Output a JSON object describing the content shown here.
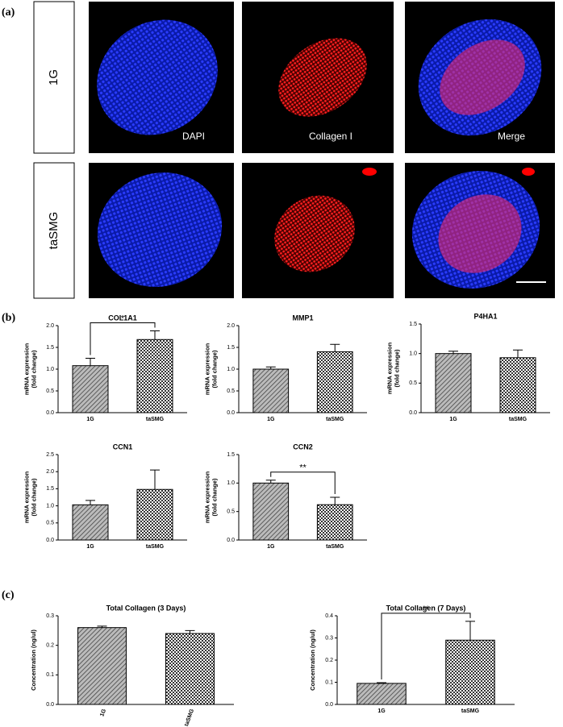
{
  "figure": {
    "panel_labels": [
      "(a)",
      "(b)",
      "(c)"
    ],
    "row_labels": [
      "1G",
      "taSMG"
    ],
    "channel_labels": [
      "DAPI",
      "Collagen I",
      "Merge"
    ]
  },
  "chart_data": [
    {
      "type": "bar",
      "title": "COL1A1",
      "y_label": [
        "mRNA expression",
        "(fold change)"
      ],
      "categories": [
        "1G",
        "taSMG"
      ],
      "values": [
        1.08,
        1.68
      ],
      "errors": [
        0.17,
        0.2
      ],
      "ylim": [
        0,
        2.0
      ],
      "yticks": [
        {
          "value": 0,
          "label": "0.0"
        },
        {
          "value": 0.5,
          "label": "0.5"
        },
        {
          "value": 1,
          "label": "1.0"
        },
        {
          "value": 1.5,
          "label": "1.5"
        },
        {
          "value": 2,
          "label": "2.0"
        }
      ],
      "significance": "*"
    },
    {
      "type": "bar",
      "title": "MMP1",
      "y_label": [
        "mRNA expression",
        "(fold change)"
      ],
      "categories": [
        "1G",
        "taSMG"
      ],
      "values": [
        1.0,
        1.4
      ],
      "errors": [
        0.05,
        0.17
      ],
      "ylim": [
        0,
        2.0
      ],
      "yticks": [
        {
          "value": 0,
          "label": "0.0"
        },
        {
          "value": 0.5,
          "label": "0.5"
        },
        {
          "value": 1,
          "label": "1.0"
        },
        {
          "value": 1.5,
          "label": "1.5"
        },
        {
          "value": 2,
          "label": "2.0"
        }
      ]
    },
    {
      "type": "bar",
      "title": "P4HA1",
      "y_label": [
        "mRNA expression",
        "(fold change)"
      ],
      "categories": [
        "1G",
        "taSMG"
      ],
      "values": [
        1.0,
        0.93
      ],
      "errors": [
        0.04,
        0.13
      ],
      "ylim": [
        0,
        1.5
      ],
      "yticks": [
        {
          "value": 0,
          "label": "0.0"
        },
        {
          "value": 0.5,
          "label": "0.5"
        },
        {
          "value": 1,
          "label": "1.0"
        },
        {
          "value": 1.5,
          "label": "1.5"
        }
      ]
    },
    {
      "type": "bar",
      "title": "CCN1",
      "y_label": [
        "mRNA expression",
        "(fold change)"
      ],
      "categories": [
        "1G",
        "taSMG"
      ],
      "values": [
        1.03,
        1.48
      ],
      "errors": [
        0.13,
        0.57
      ],
      "ylim": [
        0,
        2.5
      ],
      "yticks": [
        {
          "value": 0,
          "label": "0.0"
        },
        {
          "value": 0.5,
          "label": "0.5"
        },
        {
          "value": 1,
          "label": "1.0"
        },
        {
          "value": 1.5,
          "label": "1.5"
        },
        {
          "value": 2,
          "label": "2.0"
        },
        {
          "value": 2.5,
          "label": "2.5"
        }
      ]
    },
    {
      "type": "bar",
      "title": "CCN2",
      "y_label": [
        "mRNA expression",
        "(fold change)"
      ],
      "categories": [
        "1G",
        "taSMG"
      ],
      "values": [
        1.0,
        0.62
      ],
      "errors": [
        0.05,
        0.13
      ],
      "ylim": [
        0,
        1.5
      ],
      "yticks": [
        {
          "value": 0,
          "label": "0.0"
        },
        {
          "value": 0.5,
          "label": "0.5"
        },
        {
          "value": 1,
          "label": "1.0"
        },
        {
          "value": 1.5,
          "label": "1.5"
        }
      ],
      "significance": "**"
    },
    {
      "type": "bar",
      "title": "Total Collagen (3 Days)",
      "y_label": [
        "Concentration (ng/ul)"
      ],
      "categories": [
        "1G",
        "taSMG"
      ],
      "values": [
        0.26,
        0.24
      ],
      "errors": [
        0.005,
        0.01
      ],
      "ylim": [
        0,
        0.3
      ],
      "yticks": [
        {
          "value": 0,
          "label": "0.0"
        },
        0.1,
        0.2,
        0.3
      ],
      "x_labels_rotated": true
    },
    {
      "type": "bar",
      "title": "Total Collagen (7 Days)",
      "y_label": [
        "Concentration (ng/ul)"
      ],
      "categories": [
        "1G",
        "taSMG"
      ],
      "values": [
        0.095,
        0.29
      ],
      "errors": [
        0.003,
        0.085
      ],
      "ylim": [
        0,
        0.4
      ],
      "yticks": [
        {
          "value": 0,
          "label": "0.0"
        },
        0.1,
        0.2,
        0.3,
        0.4
      ],
      "significance": "**"
    }
  ]
}
